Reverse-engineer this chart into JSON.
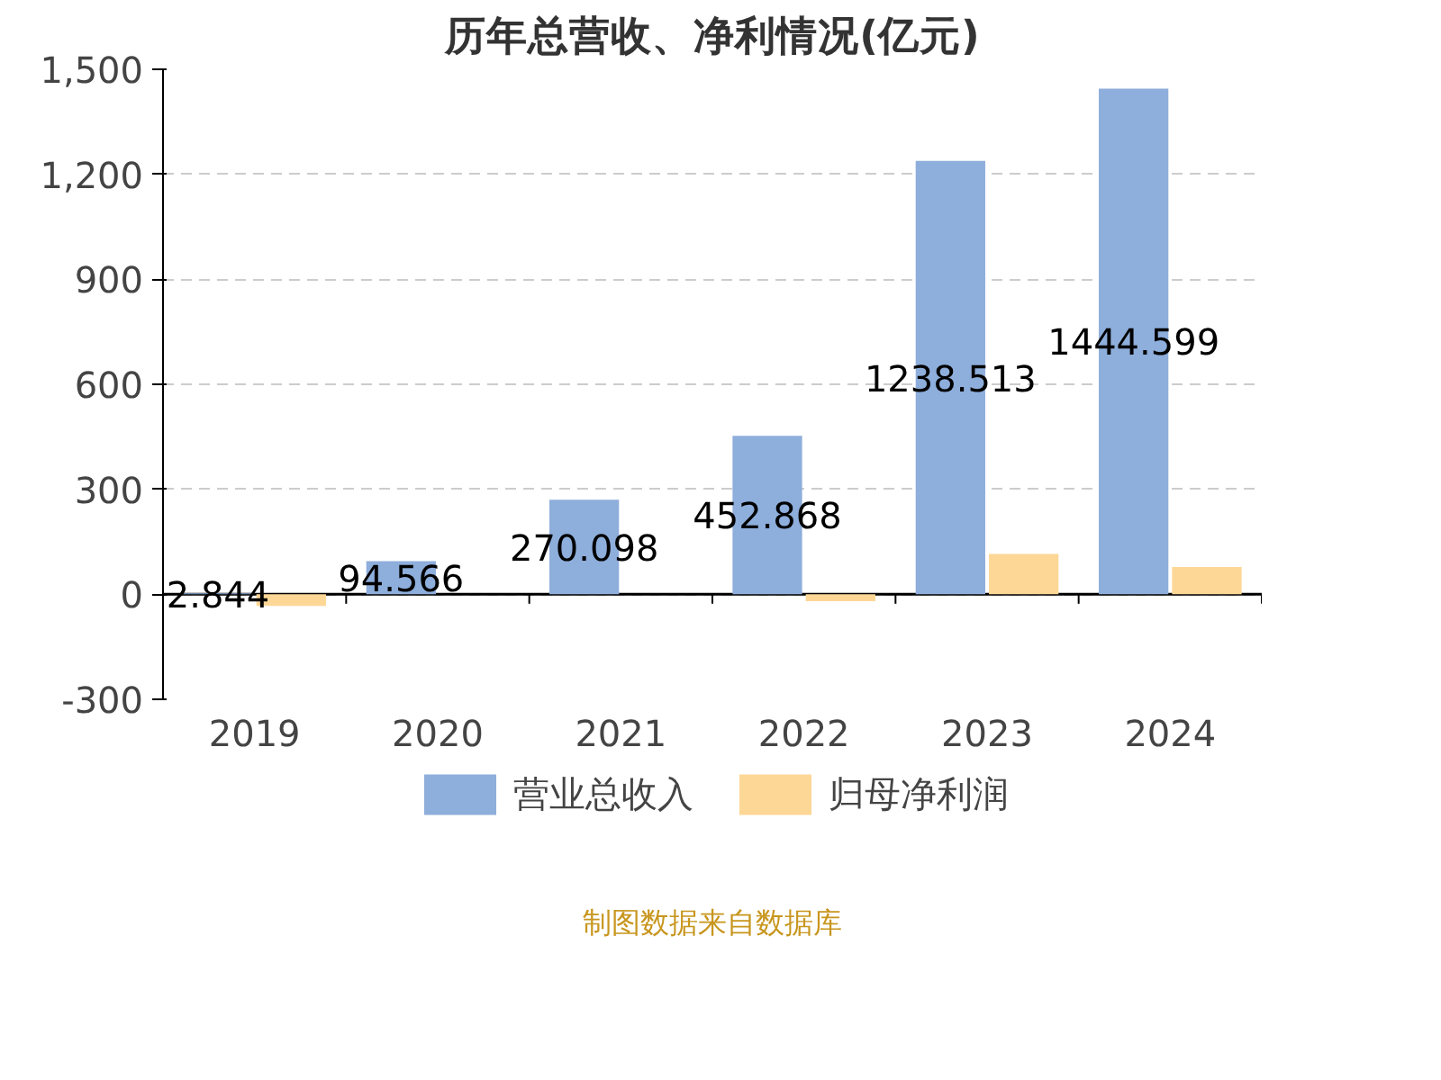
{
  "chart_data": {
    "type": "bar",
    "title": "历年总营收、净利情况(亿元)",
    "categories": [
      "2019",
      "2020",
      "2021",
      "2022",
      "2023",
      "2024"
    ],
    "series": [
      {
        "name": "营业总收入",
        "color": "#8eaedb",
        "values": [
          2.844,
          94.566,
          270.098,
          452.868,
          1238.513,
          1444.599
        ],
        "value_labels": [
          "2.844",
          "94.566",
          "270.098",
          "452.868",
          "1238.513",
          "1444.599"
        ]
      },
      {
        "name": "归母净利润",
        "color": "#fdd796",
        "values": [
          -33,
          null,
          null,
          -20,
          115,
          78
        ]
      }
    ],
    "ylim": [
      -300,
      1500
    ],
    "yticks": [
      {
        "value": -300,
        "label": "-300"
      },
      0,
      300,
      600,
      900,
      {
        "value": 1200,
        "label": "1,200"
      },
      {
        "value": 1500,
        "label": "1,500"
      }
    ],
    "grid": "y",
    "legend": "bottom",
    "annotations": [
      "制图数据来自数据库"
    ]
  }
}
